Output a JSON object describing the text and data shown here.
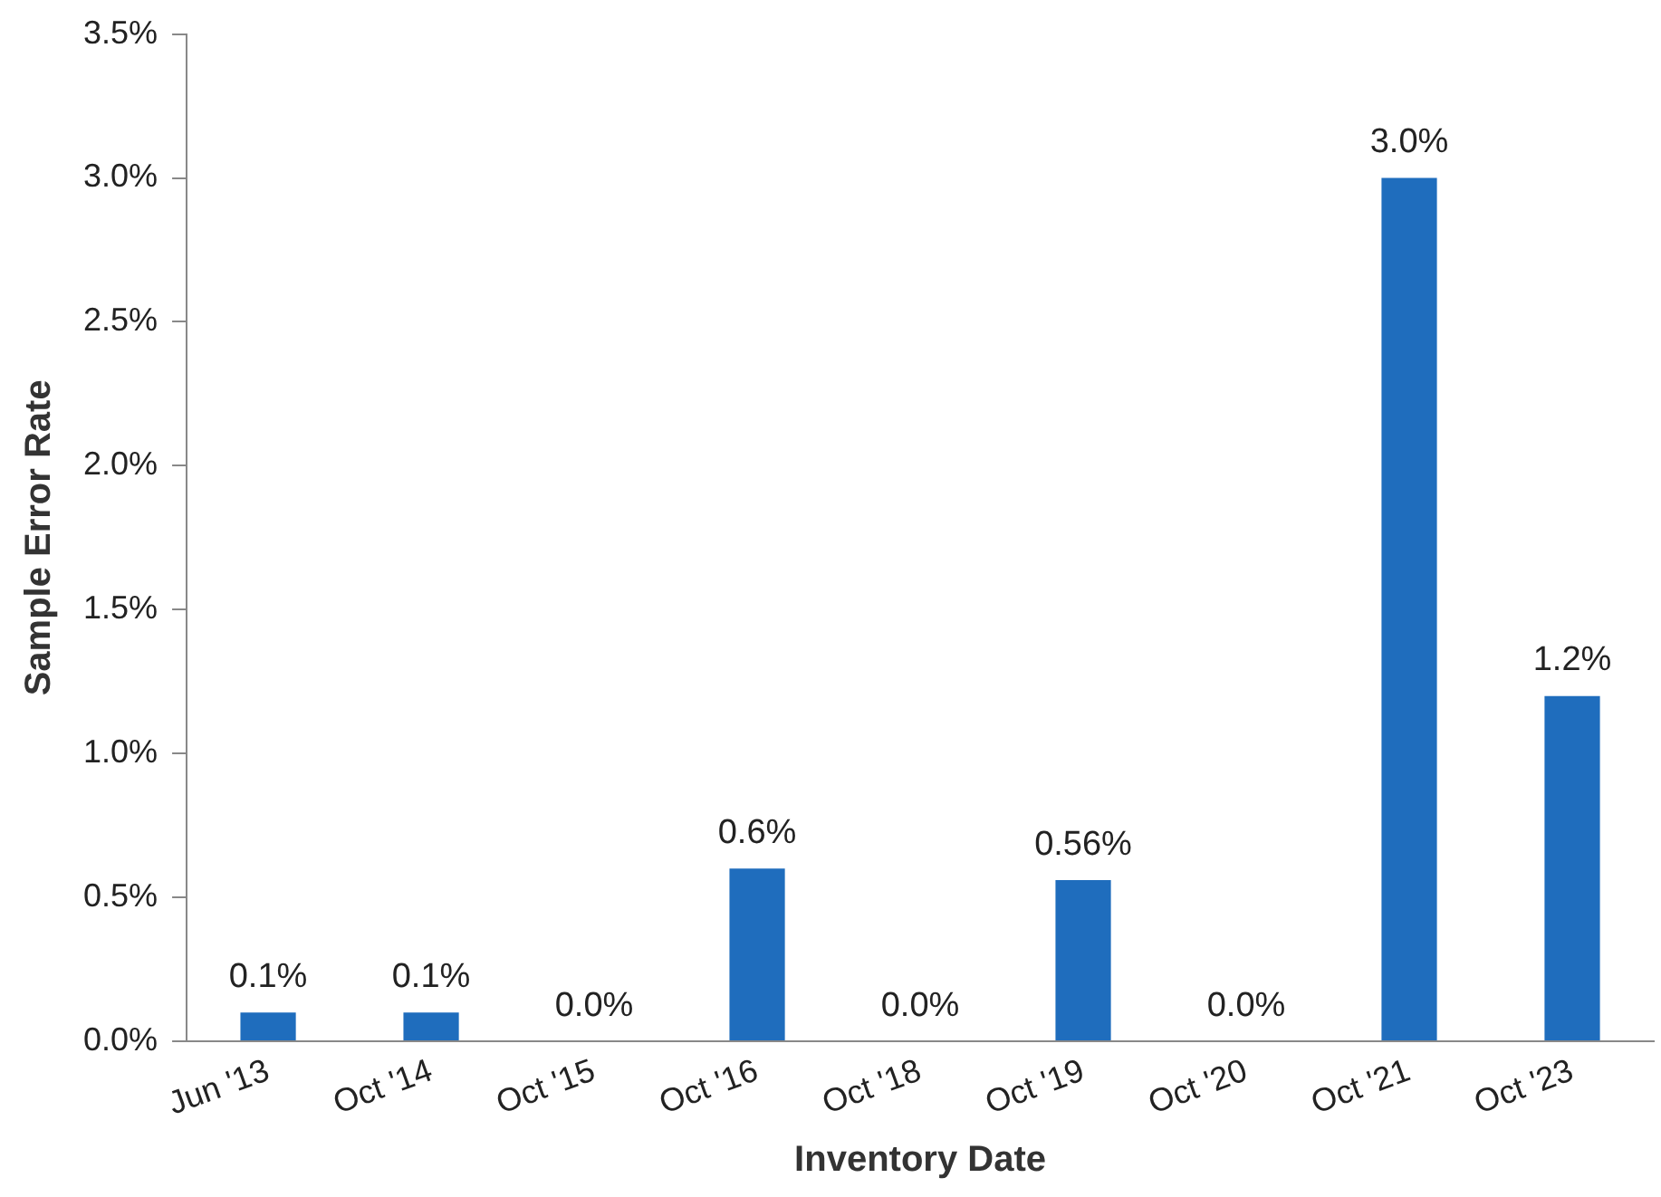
{
  "chart_data": {
    "type": "bar",
    "xlabel": "Inventory Date",
    "ylabel": "Sample Error Rate",
    "categories": [
      "Jun '13",
      "Oct '14",
      "Oct '15",
      "Oct '16",
      "Oct '18",
      "Oct '19",
      "Oct '20",
      "Oct '21",
      "Oct '23"
    ],
    "values": [
      0.1,
      0.1,
      0.0,
      0.6,
      0.0,
      0.56,
      0.0,
      3.0,
      1.2
    ],
    "value_labels": [
      "0.1%",
      "0.1%",
      "0.0%",
      "0.6%",
      "0.0%",
      "0.56%",
      "0.0%",
      "3.0%",
      "1.2%"
    ],
    "color": "#1f6dbd",
    "ylim": [
      0,
      3.5
    ],
    "yticks": [
      {
        "value": 0,
        "label": "0.0%"
      },
      {
        "value": 0.5,
        "label": "0.5%"
      },
      {
        "value": 1,
        "label": "1.0%"
      },
      {
        "value": 1.5,
        "label": "1.5%"
      },
      {
        "value": 2,
        "label": "2.0%"
      },
      {
        "value": 2.5,
        "label": "2.5%"
      },
      {
        "value": 3,
        "label": "3.0%"
      },
      {
        "value": 3.5,
        "label": "3.5%"
      }
    ],
    "legend": false
  }
}
